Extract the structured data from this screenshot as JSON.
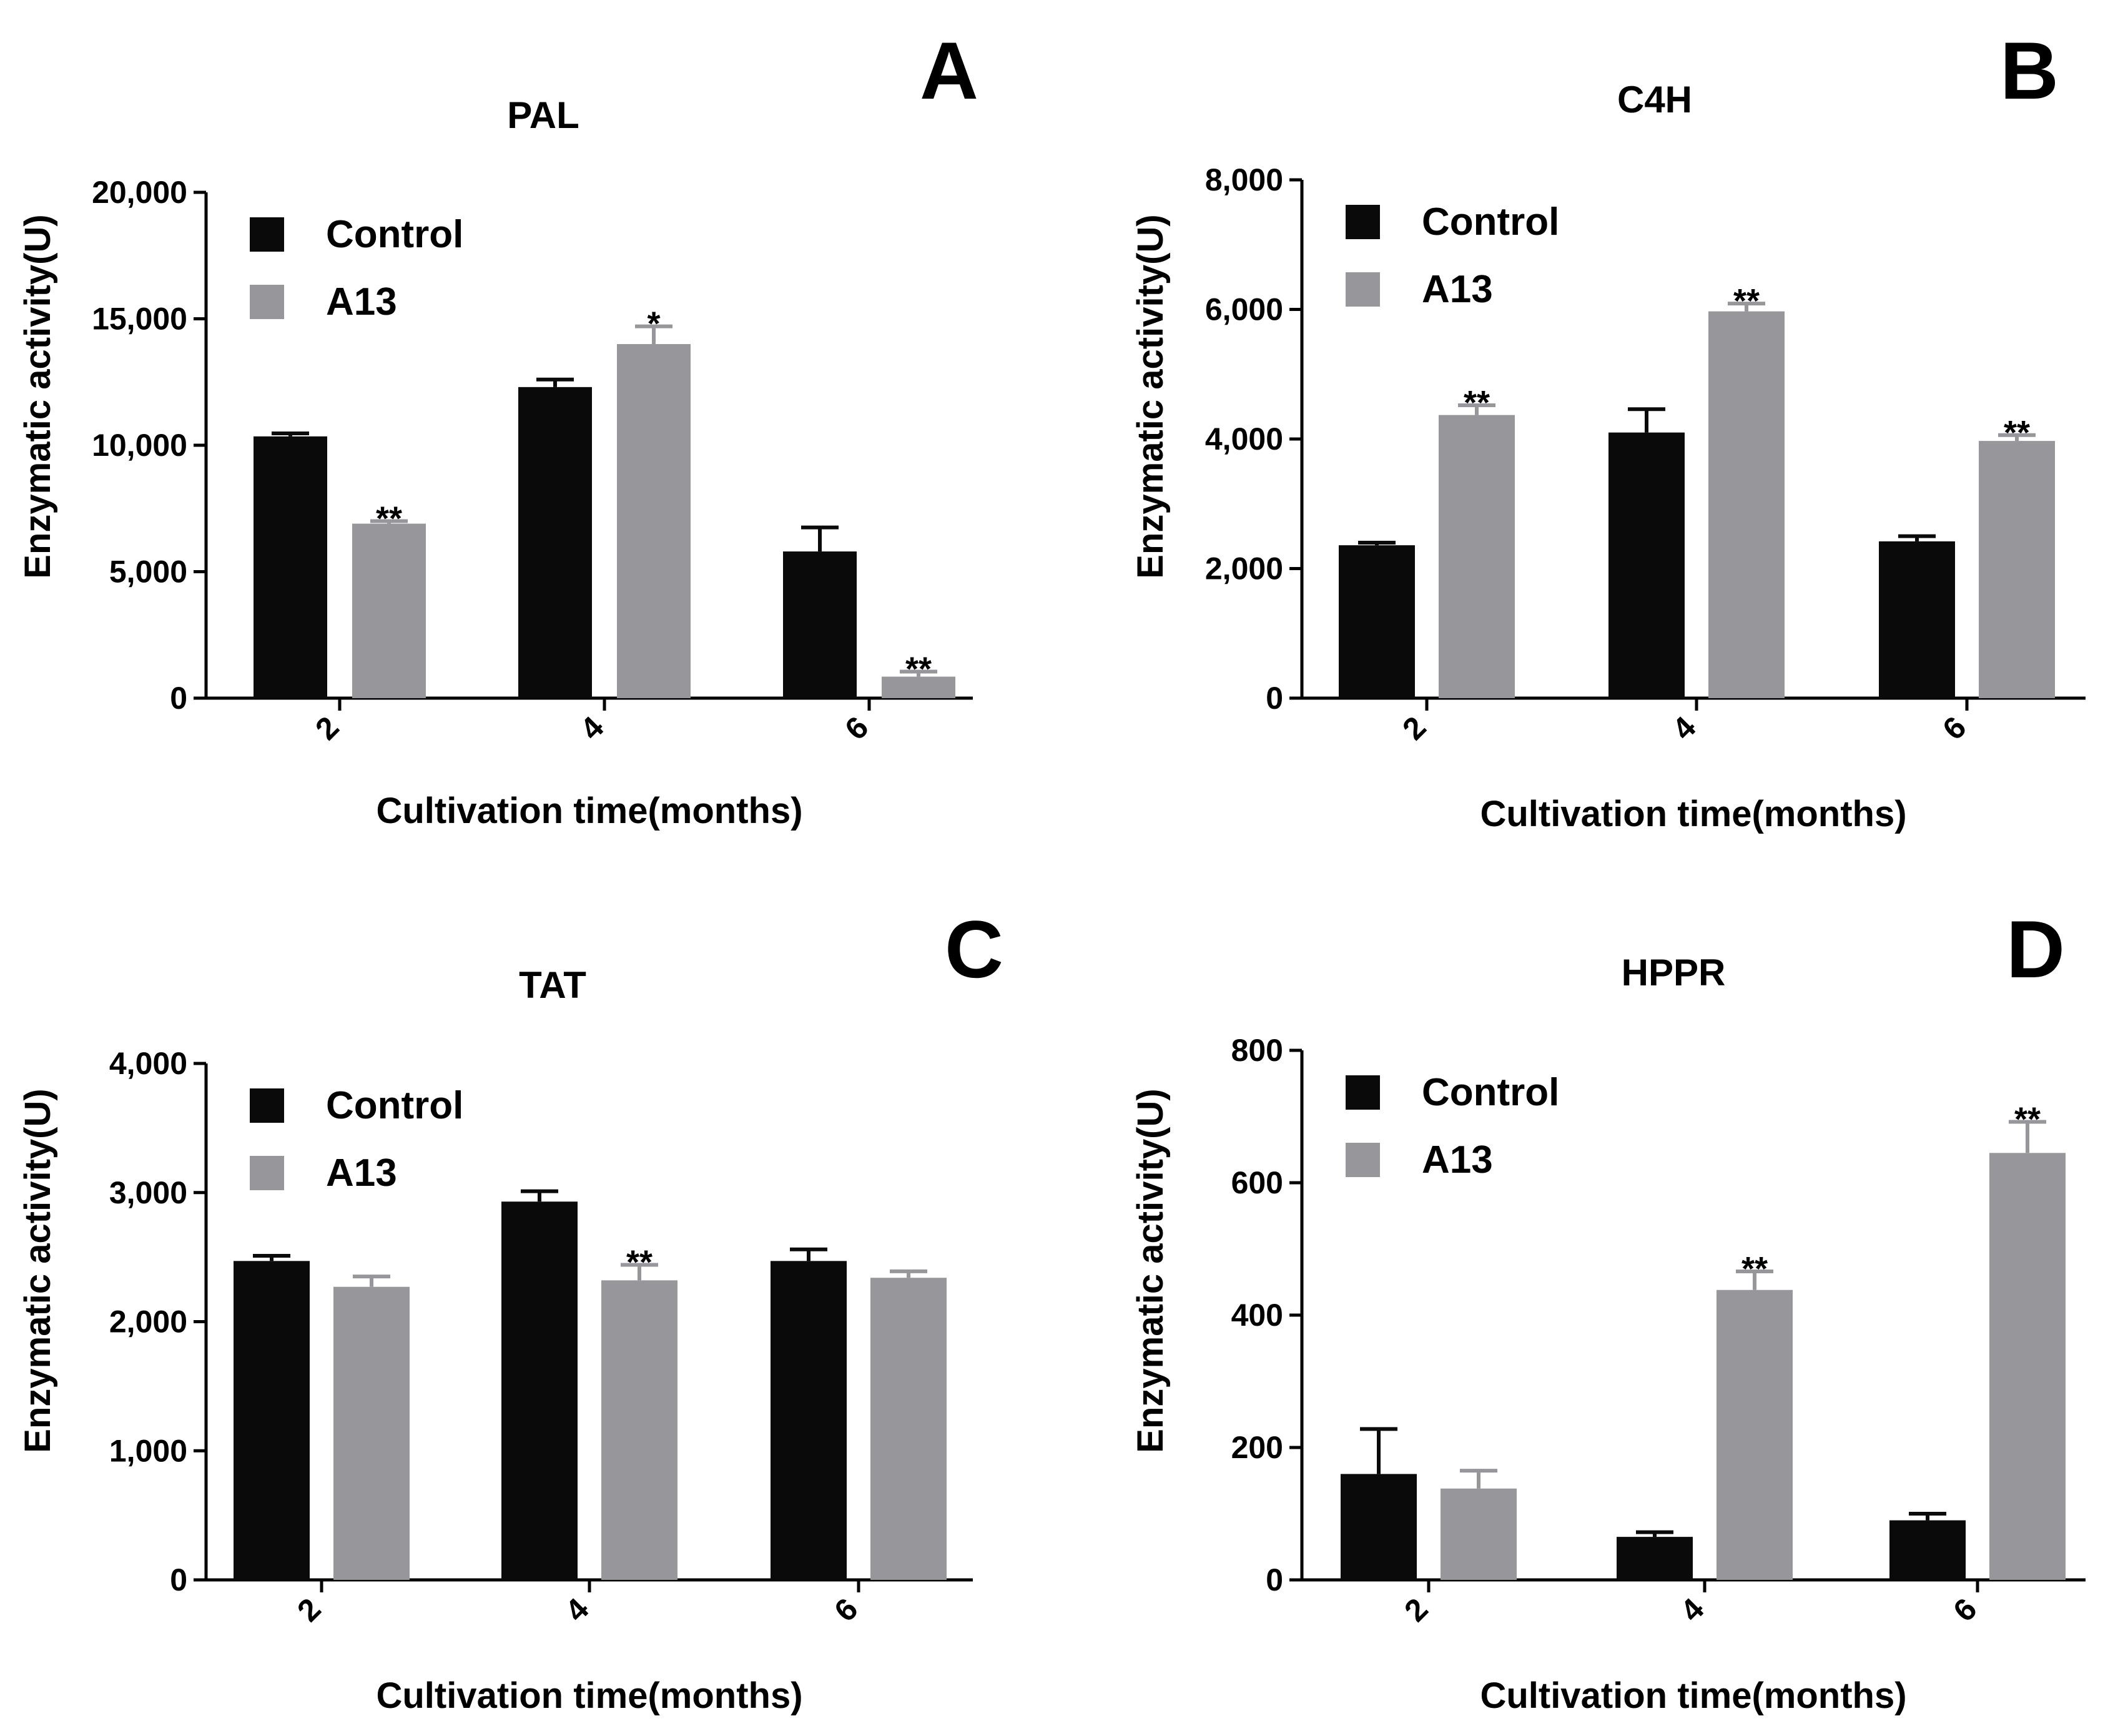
{
  "colors": {
    "control": "#0a0a0a",
    "a13": "#97979b",
    "axis": "#000000",
    "background": "#ffffff"
  },
  "chart_data": [
    {
      "panel": "A",
      "type": "bar",
      "title": "PAL",
      "xlabel": "Cultivation time(months)",
      "ylabel": "Enzymatic activity(U)",
      "categories": [
        "2",
        "4",
        "6"
      ],
      "ylim": [
        0,
        20000
      ],
      "yticks": [
        0,
        5000,
        10000,
        15000,
        20000
      ],
      "ytick_labels": [
        "0",
        "5,000",
        "10,000",
        "15,000",
        "20,000"
      ],
      "legend": {
        "position": "top-left",
        "entries": [
          "Control",
          "A13"
        ]
      },
      "series": [
        {
          "name": "Control",
          "values": [
            10350,
            12300,
            5800
          ],
          "errors": [
            120,
            300,
            950
          ],
          "significance": [
            "",
            "",
            ""
          ]
        },
        {
          "name": "A13",
          "values": [
            6900,
            14000,
            850
          ],
          "errors": [
            100,
            700,
            200
          ],
          "significance": [
            "**",
            "*",
            "**"
          ]
        }
      ]
    },
    {
      "panel": "B",
      "type": "bar",
      "title": "C4H",
      "xlabel": "Cultivation time(months)",
      "ylabel": "Enzymatic activity(U)",
      "categories": [
        "2",
        "4",
        "6"
      ],
      "ylim": [
        0,
        8000
      ],
      "yticks": [
        0,
        2000,
        4000,
        6000,
        8000
      ],
      "ytick_labels": [
        "0",
        "2,000",
        "4,000",
        "6,000",
        "8,000"
      ],
      "legend": {
        "position": "top-left",
        "entries": [
          "Control",
          "A13"
        ]
      },
      "series": [
        {
          "name": "Control",
          "values": [
            2360,
            4100,
            2420
          ],
          "errors": [
            40,
            360,
            80
          ],
          "significance": [
            "",
            "",
            ""
          ]
        },
        {
          "name": "A13",
          "values": [
            4370,
            5970,
            3970
          ],
          "errors": [
            150,
            120,
            90
          ],
          "significance": [
            "**",
            "**",
            "**"
          ]
        }
      ]
    },
    {
      "panel": "C",
      "type": "bar",
      "title": "TAT",
      "xlabel": "Cultivation time(months)",
      "ylabel": "Enzymatic activity(U)",
      "categories": [
        "2",
        "4",
        "6"
      ],
      "ylim": [
        0,
        4000
      ],
      "yticks": [
        0,
        1000,
        2000,
        3000,
        4000
      ],
      "ytick_labels": [
        "0",
        "1,000",
        "2,000",
        "3,000",
        "4,000"
      ],
      "legend": {
        "position": "top-left",
        "entries": [
          "Control",
          "A13"
        ]
      },
      "series": [
        {
          "name": "Control",
          "values": [
            2470,
            2930,
            2470
          ],
          "errors": [
            40,
            80,
            90
          ],
          "significance": [
            "",
            "",
            ""
          ]
        },
        {
          "name": "A13",
          "values": [
            2270,
            2320,
            2340
          ],
          "errors": [
            80,
            120,
            50
          ],
          "significance": [
            "",
            "**",
            ""
          ]
        }
      ]
    },
    {
      "panel": "D",
      "type": "bar",
      "title": "HPPR",
      "xlabel": "Cultivation time(months)",
      "ylabel": "Enzymatic activity(U)",
      "categories": [
        "2",
        "4",
        "6"
      ],
      "ylim": [
        0,
        800
      ],
      "yticks": [
        0,
        200,
        400,
        600,
        800
      ],
      "ytick_labels": [
        "0",
        "200",
        "400",
        "600",
        "800"
      ],
      "legend": {
        "position": "top-left",
        "entries": [
          "Control",
          "A13"
        ]
      },
      "series": [
        {
          "name": "Control",
          "values": [
            160,
            65,
            90
          ],
          "errors": [
            68,
            7,
            10
          ],
          "significance": [
            "",
            "",
            ""
          ]
        },
        {
          "name": "A13",
          "values": [
            138,
            438,
            645
          ],
          "errors": [
            27,
            28,
            47
          ],
          "significance": [
            "",
            "**",
            "**"
          ]
        }
      ]
    }
  ]
}
